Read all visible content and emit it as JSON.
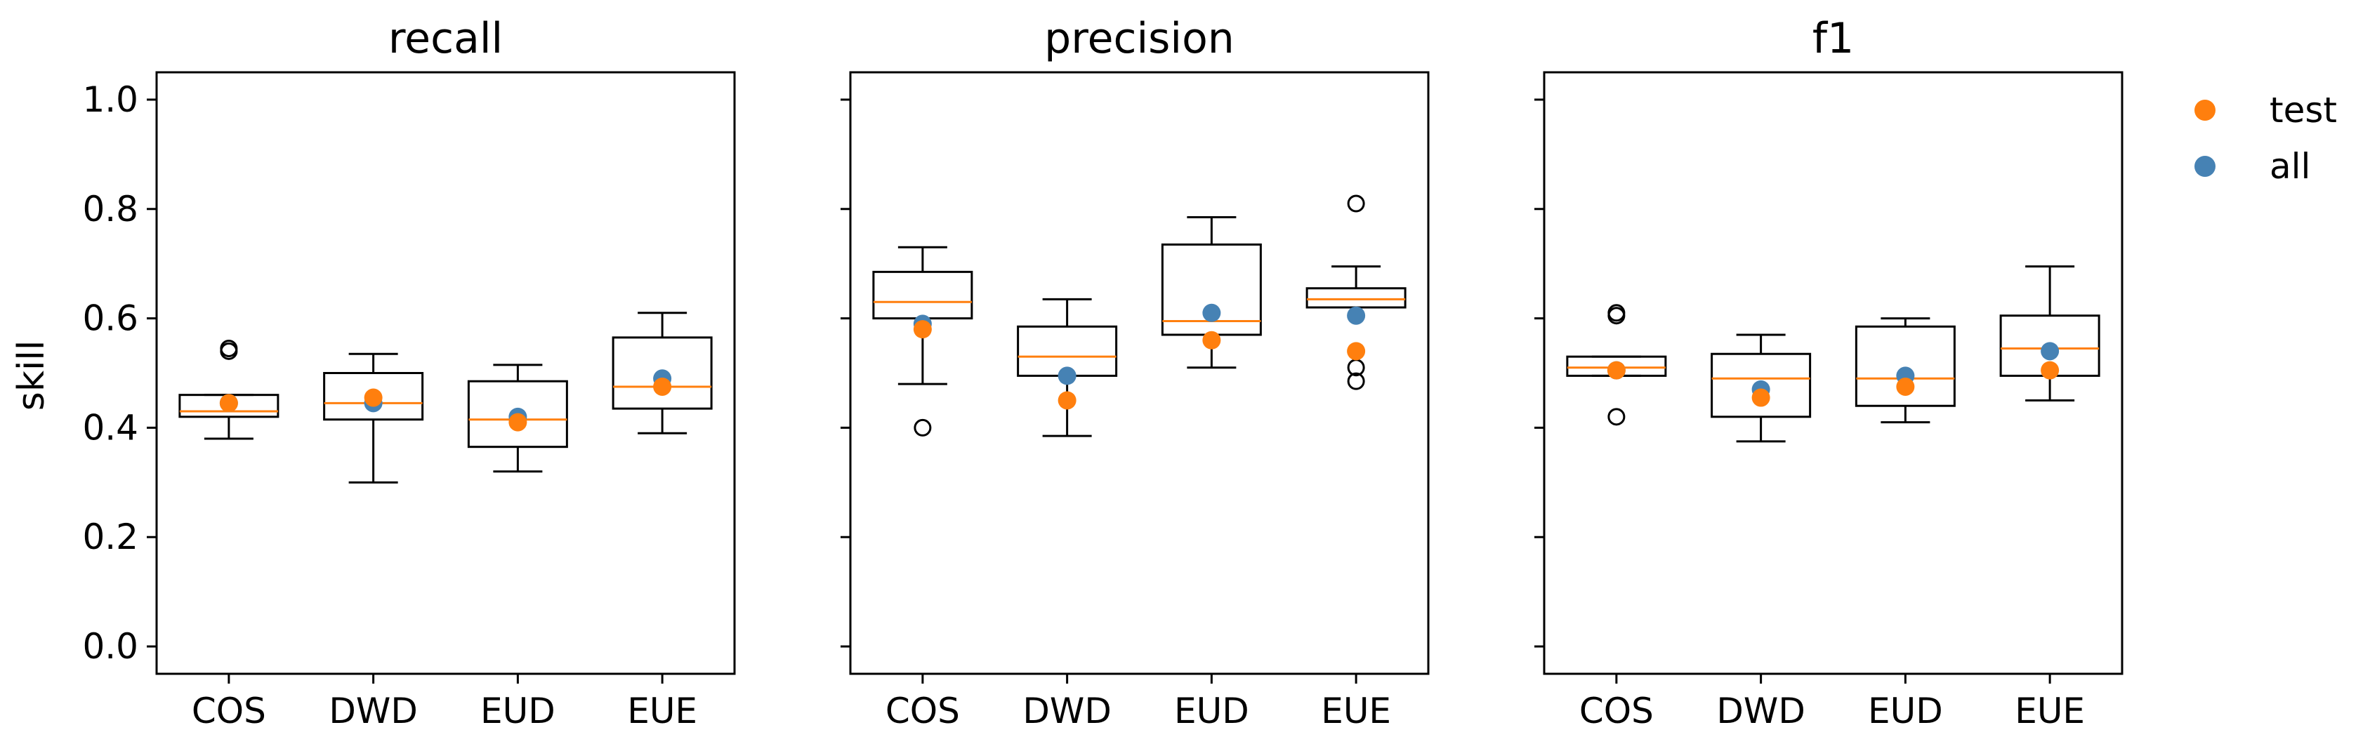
{
  "figure": {
    "ylabel": "skill",
    "legend": {
      "placement": "outside-top-right",
      "entries": [
        {
          "label": "test",
          "color": "#ff7f0e"
        },
        {
          "label": "all",
          "color": "#4682b4"
        }
      ]
    }
  },
  "chart_data": [
    {
      "type": "box",
      "title": "recall",
      "xlabel": "",
      "ylabel": "skill",
      "ylim": [
        -0.05,
        1.05
      ],
      "yticks": [
        "0.0",
        "0.2",
        "0.4",
        "0.6",
        "0.8",
        "1.0"
      ],
      "categories": [
        "COS",
        "DWD",
        "EUD",
        "EUE"
      ],
      "boxes": [
        {
          "whisker_low": 0.38,
          "q1": 0.42,
          "median": 0.43,
          "q3": 0.46,
          "whisker_high": 0.46,
          "outliers": [
            0.54,
            0.545
          ]
        },
        {
          "whisker_low": 0.3,
          "q1": 0.415,
          "median": 0.445,
          "q3": 0.5,
          "whisker_high": 0.535,
          "outliers": []
        },
        {
          "whisker_low": 0.32,
          "q1": 0.365,
          "median": 0.415,
          "q3": 0.485,
          "whisker_high": 0.515,
          "outliers": []
        },
        {
          "whisker_low": 0.39,
          "q1": 0.435,
          "median": 0.475,
          "q3": 0.565,
          "whisker_high": 0.61,
          "outliers": []
        }
      ],
      "series": [
        {
          "name": "test",
          "values": [
            0.445,
            0.455,
            0.41,
            0.475
          ]
        },
        {
          "name": "all",
          "values": [
            0.445,
            0.445,
            0.42,
            0.49
          ]
        }
      ]
    },
    {
      "type": "box",
      "title": "precision",
      "xlabel": "",
      "ylabel": "",
      "ylim": [
        -0.05,
        1.05
      ],
      "yticks": [
        "0.0",
        "0.2",
        "0.4",
        "0.6",
        "0.8",
        "1.0"
      ],
      "categories": [
        "COS",
        "DWD",
        "EUD",
        "EUE"
      ],
      "boxes": [
        {
          "whisker_low": 0.48,
          "q1": 0.6,
          "median": 0.63,
          "q3": 0.685,
          "whisker_high": 0.73,
          "outliers": [
            0.4
          ]
        },
        {
          "whisker_low": 0.385,
          "q1": 0.495,
          "median": 0.53,
          "q3": 0.585,
          "whisker_high": 0.635,
          "outliers": []
        },
        {
          "whisker_low": 0.51,
          "q1": 0.57,
          "median": 0.595,
          "q3": 0.735,
          "whisker_high": 0.785,
          "outliers": []
        },
        {
          "whisker_low": 0.62,
          "q1": 0.62,
          "median": 0.635,
          "q3": 0.655,
          "whisker_high": 0.695,
          "outliers": [
            0.81,
            0.51,
            0.485
          ]
        }
      ],
      "series": [
        {
          "name": "test",
          "values": [
            0.58,
            0.45,
            0.56,
            0.54
          ]
        },
        {
          "name": "all",
          "values": [
            0.59,
            0.495,
            0.61,
            0.605
          ]
        }
      ]
    },
    {
      "type": "box",
      "title": "f1",
      "xlabel": "",
      "ylabel": "",
      "ylim": [
        -0.05,
        1.05
      ],
      "yticks": [
        "0.0",
        "0.2",
        "0.4",
        "0.6",
        "0.8",
        "1.0"
      ],
      "categories": [
        "COS",
        "DWD",
        "EUD",
        "EUE"
      ],
      "boxes": [
        {
          "whisker_low": 0.495,
          "q1": 0.495,
          "median": 0.51,
          "q3": 0.53,
          "whisker_high": 0.53,
          "outliers": [
            0.61,
            0.605,
            0.42
          ]
        },
        {
          "whisker_low": 0.375,
          "q1": 0.42,
          "median": 0.49,
          "q3": 0.535,
          "whisker_high": 0.57,
          "outliers": []
        },
        {
          "whisker_low": 0.41,
          "q1": 0.44,
          "median": 0.49,
          "q3": 0.585,
          "whisker_high": 0.6,
          "outliers": []
        },
        {
          "whisker_low": 0.45,
          "q1": 0.495,
          "median": 0.545,
          "q3": 0.605,
          "whisker_high": 0.695,
          "outliers": []
        }
      ],
      "series": [
        {
          "name": "test",
          "values": [
            0.505,
            0.455,
            0.475,
            0.505
          ]
        },
        {
          "name": "all",
          "values": [
            0.505,
            0.47,
            0.495,
            0.54
          ]
        }
      ]
    }
  ]
}
